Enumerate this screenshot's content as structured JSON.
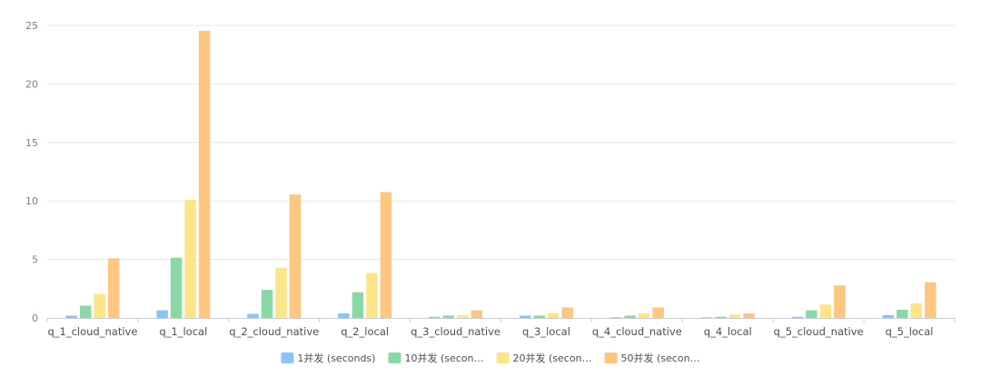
{
  "chart_data": {
    "type": "bar",
    "categories": [
      "q_1_cloud_native",
      "q_1_local",
      "q_2_cloud_native",
      "q_2_local",
      "q_3_cloud_native",
      "q_3_local",
      "q_4_cloud_native",
      "q_4_local",
      "q_5_cloud_native",
      "q_5_local"
    ],
    "series": [
      {
        "name": "1并发 (seconds)",
        "legend_label": "1并发 (seconds)",
        "color": "#8ac4fb",
        "values": [
          0.2,
          0.65,
          0.35,
          0.4,
          0.1,
          0.2,
          0.05,
          0.05,
          0.1,
          0.25
        ]
      },
      {
        "name": "10并发 (seconds)",
        "legend_label": "10并发 (secon…",
        "color": "#88d9a5",
        "values": [
          1.05,
          5.15,
          2.4,
          2.2,
          0.2,
          0.2,
          0.2,
          0.1,
          0.65,
          0.7
        ]
      },
      {
        "name": "20并发 (seconds)",
        "legend_label": "20并发 (secon…",
        "color": "#fbe588",
        "values": [
          2.05,
          10.1,
          4.3,
          3.85,
          0.25,
          0.4,
          0.4,
          0.3,
          1.15,
          1.25
        ]
      },
      {
        "name": "50并发 (seconds)",
        "legend_label": "50并发 (secon…",
        "color": "#fdc681",
        "values": [
          5.1,
          24.55,
          10.55,
          10.75,
          0.65,
          0.9,
          0.9,
          0.4,
          2.8,
          3.05
        ]
      }
    ],
    "title": "",
    "xlabel": "",
    "ylabel": "",
    "ylim": [
      0,
      25
    ],
    "yticks": [
      0,
      5,
      10,
      15,
      20,
      25
    ],
    "grid": true,
    "legend_position": "bottom"
  }
}
